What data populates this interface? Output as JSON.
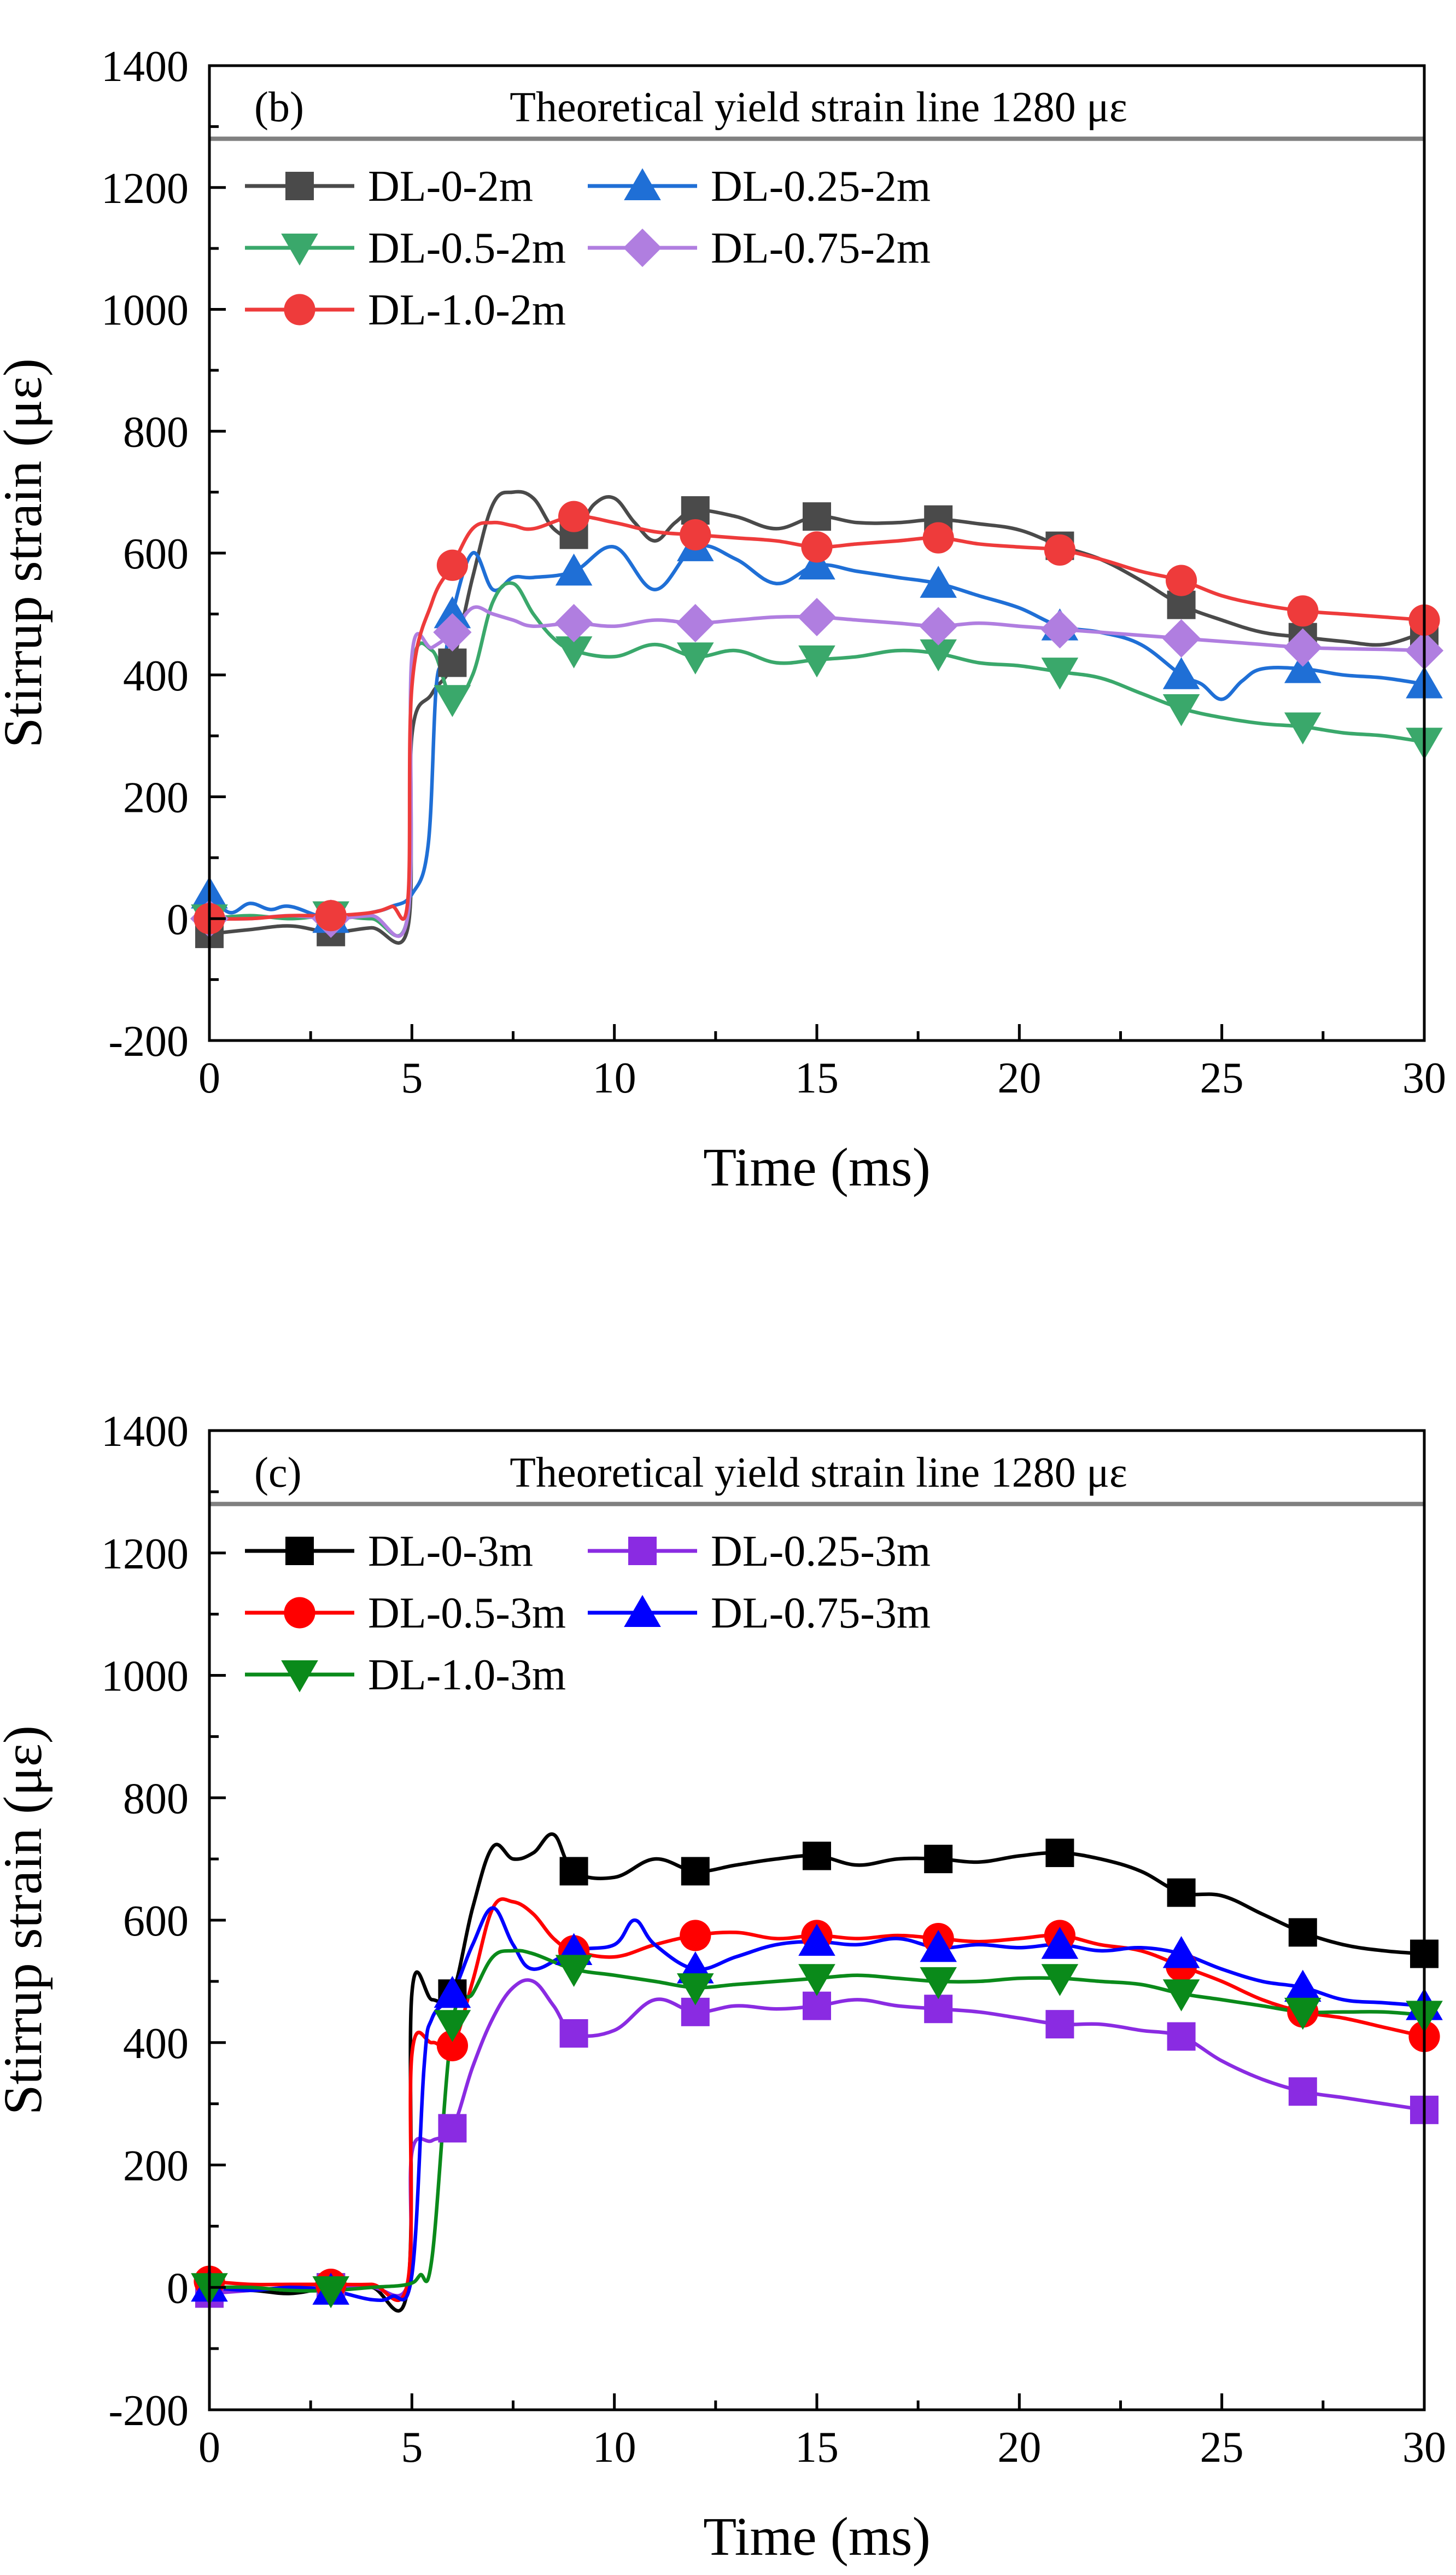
{
  "chart_data": [
    {
      "type": "line",
      "panel_label": "(b)",
      "xlabel": "Time (ms)",
      "ylabel": "Stirrup strain (με)",
      "xlim": [
        0,
        30
      ],
      "ylim": [
        -200,
        1400
      ],
      "x_ticks": [
        0,
        5,
        10,
        15,
        20,
        25,
        30
      ],
      "y_ticks": [
        -200,
        0,
        200,
        400,
        600,
        800,
        1000,
        1200,
        1400
      ],
      "x_tick_labels": [
        "0",
        "5",
        "10",
        "15",
        "20",
        "25",
        "30"
      ],
      "y_tick_labels": [
        "-200",
        "0",
        "200",
        "400",
        "600",
        "800",
        "1000",
        "1200",
        "1400"
      ],
      "reference_line": {
        "value": 1280,
        "label": "Theoretical yield strain line 1280 με",
        "color": "#808080"
      },
      "legend_position": "top-left",
      "series": [
        {
          "name": "DL-0-2m",
          "color": "#4a4a4a",
          "marker": "square",
          "x": [
            0,
            1,
            2,
            3,
            4,
            4.9,
            5.0,
            5.5,
            6,
            6.5,
            7,
            7.5,
            8,
            8.5,
            9,
            9.5,
            10,
            10.5,
            11,
            11.5,
            12,
            13,
            14,
            15,
            16,
            17,
            18,
            19,
            20,
            21,
            22,
            23,
            24,
            25,
            26,
            27,
            28,
            29,
            30
          ],
          "values": [
            -25,
            -18,
            -12,
            -22,
            -15,
            -15,
            300,
            370,
            420,
            560,
            680,
            700,
            690,
            640,
            630,
            680,
            690,
            650,
            620,
            650,
            670,
            660,
            640,
            660,
            650,
            650,
            655,
            648,
            638,
            612,
            590,
            555,
            515,
            490,
            470,
            462,
            455,
            450,
            470
          ],
          "marker_x": [
            0,
            3,
            6,
            9,
            12,
            15,
            18,
            21,
            24,
            27,
            30
          ]
        },
        {
          "name": "DL-0.25-2m",
          "color": "#1f6fd6",
          "marker": "triangle-up",
          "x": [
            0,
            0.5,
            1,
            1.5,
            2,
            3,
            4,
            4.5,
            5,
            5.4,
            5.6,
            5.8,
            6,
            6.5,
            7,
            7.5,
            8,
            9,
            10,
            11,
            12,
            13,
            14,
            15,
            16,
            17,
            18,
            19,
            20,
            21,
            22,
            23,
            24,
            24.5,
            25,
            25.5,
            26,
            27,
            28,
            29,
            30
          ],
          "values": [
            40,
            10,
            25,
            15,
            20,
            0,
            10,
            20,
            40,
            120,
            380,
            420,
            500,
            600,
            540,
            560,
            560,
            570,
            610,
            540,
            610,
            590,
            550,
            580,
            570,
            560,
            550,
            530,
            510,
            480,
            470,
            450,
            400,
            385,
            360,
            390,
            410,
            410,
            400,
            395,
            385
          ],
          "marker_x": [
            0,
            3,
            6,
            9,
            12,
            15,
            18,
            21,
            24,
            27,
            30
          ]
        },
        {
          "name": "DL-0.5-2m",
          "color": "#3aa86b",
          "marker": "triangle-down",
          "x": [
            0,
            1,
            2,
            3,
            4,
            4.9,
            5.0,
            5.5,
            6,
            6.5,
            7,
            7.5,
            8,
            8.5,
            9,
            10,
            11,
            12,
            13,
            14,
            15,
            16,
            17,
            18,
            19,
            20,
            21,
            22,
            23,
            24,
            25,
            26,
            27,
            28,
            29,
            30
          ],
          "values": [
            0,
            5,
            0,
            5,
            0,
            5,
            400,
            440,
            360,
            400,
            520,
            550,
            500,
            460,
            440,
            430,
            450,
            430,
            440,
            420,
            425,
            430,
            440,
            435,
            420,
            415,
            405,
            395,
            370,
            345,
            330,
            320,
            315,
            305,
            300,
            290
          ],
          "marker_x": [
            0,
            3,
            6,
            9,
            12,
            15,
            18,
            21,
            24,
            27,
            30
          ]
        },
        {
          "name": "DL-0.75-2m",
          "color": "#b07ee0",
          "marker": "diamond",
          "x": [
            0,
            1,
            2,
            3,
            4,
            4.9,
            5.0,
            5.5,
            6,
            6.5,
            7,
            7.5,
            8,
            9,
            10,
            11,
            12,
            13,
            14,
            15,
            16,
            17,
            18,
            19,
            20,
            21,
            22,
            23,
            24,
            25,
            26,
            27,
            28,
            29,
            30
          ],
          "values": [
            0,
            0,
            5,
            0,
            5,
            5,
            430,
            445,
            470,
            510,
            500,
            490,
            480,
            485,
            480,
            490,
            485,
            490,
            495,
            495,
            490,
            485,
            480,
            485,
            480,
            475,
            470,
            465,
            460,
            455,
            450,
            445,
            443,
            442,
            440
          ],
          "marker_x": [
            0,
            3,
            6,
            9,
            12,
            15,
            18,
            21,
            24,
            27,
            30
          ]
        },
        {
          "name": "DL-1.0-2m",
          "color": "#ee3b3b",
          "marker": "circle",
          "x": [
            0,
            1,
            2,
            3,
            4,
            4.5,
            4.9,
            5.0,
            5.5,
            6,
            6.5,
            7,
            7.5,
            8,
            9,
            10,
            11,
            12,
            13,
            14,
            15,
            16,
            17,
            18,
            19,
            20,
            21,
            22,
            23,
            24,
            25,
            26,
            27,
            28,
            29,
            30
          ],
          "values": [
            0,
            0,
            5,
            5,
            10,
            20,
            30,
            380,
            520,
            580,
            640,
            650,
            645,
            640,
            660,
            650,
            635,
            630,
            625,
            620,
            610,
            615,
            620,
            625,
            615,
            610,
            605,
            590,
            570,
            555,
            530,
            515,
            505,
            500,
            495,
            490
          ],
          "marker_x": [
            0,
            3,
            6,
            9,
            12,
            15,
            18,
            21,
            24,
            27,
            30
          ]
        }
      ]
    },
    {
      "type": "line",
      "panel_label": "(c)",
      "xlabel": "Time (ms)",
      "ylabel": "Stirrup strain (με)",
      "xlim": [
        0,
        30
      ],
      "ylim": [
        -200,
        1400
      ],
      "x_ticks": [
        0,
        5,
        10,
        15,
        20,
        25,
        30
      ],
      "y_ticks": [
        -200,
        0,
        200,
        400,
        600,
        800,
        1000,
        1200,
        1400
      ],
      "x_tick_labels": [
        "0",
        "5",
        "10",
        "15",
        "20",
        "25",
        "30"
      ],
      "y_tick_labels": [
        "-200",
        "0",
        "200",
        "400",
        "600",
        "800",
        "1000",
        "1200",
        "1400"
      ],
      "reference_line": {
        "value": 1280,
        "label": "Theoretical yield strain line 1280 με",
        "color": "#808080"
      },
      "legend_position": "top-left",
      "series": [
        {
          "name": "DL-0-3m",
          "color": "#000000",
          "marker": "square",
          "x": [
            0,
            1,
            2,
            3,
            4,
            4.9,
            5.0,
            5.5,
            6,
            6.5,
            7,
            7.5,
            8,
            8.5,
            9,
            10,
            11,
            12,
            13,
            14,
            15,
            16,
            17,
            18,
            19,
            20,
            21,
            22,
            23,
            24,
            25,
            26,
            27,
            28,
            29,
            30
          ],
          "values": [
            -10,
            -5,
            -10,
            0,
            0,
            0,
            480,
            470,
            480,
            620,
            720,
            700,
            710,
            740,
            680,
            670,
            700,
            680,
            690,
            700,
            705,
            690,
            700,
            700,
            695,
            705,
            710,
            700,
            680,
            645,
            640,
            610,
            580,
            560,
            550,
            545
          ],
          "marker_x": [
            0,
            3,
            6,
            9,
            12,
            15,
            18,
            21,
            24,
            27,
            30
          ]
        },
        {
          "name": "DL-0.25-3m",
          "color": "#8a2be2",
          "marker": "square",
          "x": [
            0,
            1,
            2,
            3,
            4,
            4.9,
            5.0,
            5.5,
            6,
            6.5,
            7,
            7.5,
            8,
            8.5,
            9,
            10,
            11,
            12,
            13,
            14,
            15,
            16,
            17,
            18,
            19,
            20,
            21,
            22,
            23,
            24,
            25,
            26,
            27,
            28,
            29,
            30
          ],
          "values": [
            -10,
            -5,
            0,
            0,
            0,
            5,
            220,
            240,
            260,
            360,
            440,
            490,
            500,
            460,
            415,
            420,
            470,
            450,
            460,
            455,
            460,
            470,
            460,
            455,
            450,
            440,
            430,
            430,
            420,
            410,
            370,
            340,
            320,
            310,
            300,
            290
          ],
          "marker_x": [
            0,
            3,
            6,
            9,
            12,
            15,
            18,
            21,
            24,
            27,
            30
          ]
        },
        {
          "name": "DL-0.5-3m",
          "color": "#ff0000",
          "marker": "circle",
          "x": [
            0,
            1,
            2,
            3,
            4,
            4.9,
            5.0,
            5.5,
            6,
            6.5,
            7,
            7.5,
            8,
            8.5,
            9,
            10,
            11,
            12,
            13,
            14,
            15,
            16,
            17,
            18,
            19,
            20,
            21,
            22,
            23,
            24,
            25,
            26,
            27,
            28,
            29,
            30
          ],
          "values": [
            10,
            5,
            5,
            5,
            5,
            10,
            380,
            400,
            395,
            500,
            620,
            630,
            610,
            570,
            550,
            540,
            560,
            575,
            580,
            570,
            575,
            570,
            575,
            570,
            565,
            570,
            575,
            560,
            550,
            525,
            500,
            470,
            450,
            440,
            425,
            410
          ],
          "marker_x": [
            0,
            3,
            6,
            9,
            12,
            15,
            18,
            21,
            24,
            27,
            30
          ]
        },
        {
          "name": "DL-0.75-3m",
          "color": "#0000ff",
          "marker": "triangle-up",
          "x": [
            0,
            1,
            2,
            3,
            4,
            4.5,
            5.0,
            5.3,
            5.5,
            6,
            6.5,
            7,
            7.5,
            8,
            9,
            10,
            10.5,
            11,
            12,
            13,
            14,
            15,
            16,
            17,
            18,
            19,
            20,
            21,
            22,
            23,
            24,
            25,
            26,
            27,
            28,
            29,
            30
          ],
          "values": [
            0,
            -5,
            0,
            -5,
            -20,
            -15,
            20,
            360,
            440,
            480,
            560,
            620,
            560,
            520,
            550,
            560,
            600,
            560,
            520,
            540,
            560,
            565,
            560,
            570,
            555,
            560,
            555,
            560,
            550,
            555,
            545,
            520,
            500,
            490,
            470,
            465,
            460
          ],
          "marker_x": [
            0,
            3,
            6,
            9,
            12,
            15,
            18,
            21,
            24,
            27,
            30
          ]
        },
        {
          "name": "DL-1.0-3m",
          "color": "#0a8a1a",
          "marker": "triangle-down",
          "x": [
            0,
            1,
            2,
            3,
            4,
            4.9,
            5.2,
            5.5,
            6,
            6.5,
            7,
            7.5,
            8,
            9,
            10,
            11,
            12,
            13,
            14,
            15,
            16,
            17,
            18,
            19,
            20,
            21,
            22,
            23,
            24,
            25,
            26,
            27,
            28,
            29,
            30
          ],
          "values": [
            0,
            0,
            -5,
            -5,
            0,
            5,
            20,
            50,
            430,
            480,
            540,
            550,
            545,
            520,
            510,
            500,
            490,
            495,
            500,
            505,
            510,
            505,
            500,
            500,
            505,
            505,
            500,
            495,
            480,
            470,
            460,
            450,
            450,
            450,
            445
          ],
          "marker_x": [
            0,
            3,
            6,
            9,
            12,
            15,
            18,
            21,
            24,
            27,
            30
          ]
        }
      ]
    }
  ]
}
